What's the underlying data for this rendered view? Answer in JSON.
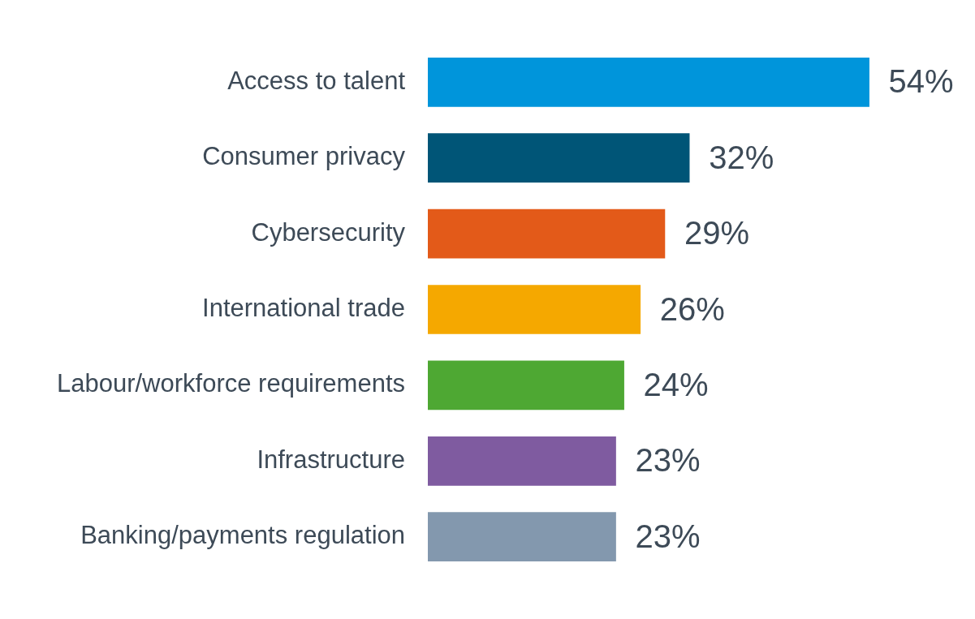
{
  "chart_data": {
    "type": "bar",
    "orientation": "horizontal",
    "categories": [
      "Access to talent",
      "Consumer privacy",
      "Cybersecurity",
      "International trade",
      "Labour/workforce requirements",
      "Infrastructure",
      "Banking/payments regulation"
    ],
    "values": [
      54,
      32,
      29,
      26,
      24,
      23,
      23
    ],
    "colors": [
      "#0095db",
      "#005577",
      "#e35a19",
      "#f5a800",
      "#4ea833",
      "#7f5ba0",
      "#8398ae"
    ],
    "value_labels": [
      "54%",
      "32%",
      "29%",
      "26%",
      "24%",
      "23%",
      "23%"
    ],
    "grid": false,
    "legend": false
  }
}
